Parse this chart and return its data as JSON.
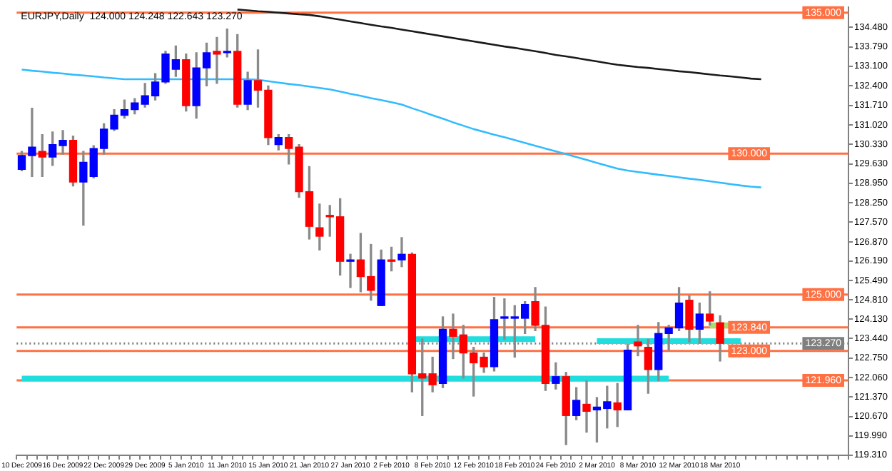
{
  "chart_data": {
    "type": "candlestick",
    "title": "EURJPY,Daily  124.000 124.248 122.643 123.270",
    "categories": [
      "10 Dec 2009",
      null,
      null,
      null,
      "16 Dec 2009",
      null,
      null,
      null,
      "22 Dec 2009",
      null,
      null,
      null,
      "29 Dec 2009",
      null,
      null,
      null,
      "5 Jan 2010",
      null,
      null,
      null,
      "11 Jan 2010",
      null,
      null,
      null,
      "15 Jan 2010",
      null,
      null,
      null,
      "21 Jan 2010",
      null,
      null,
      null,
      "27 Jan 2010",
      null,
      null,
      null,
      "2 Feb 2010",
      null,
      null,
      null,
      "8 Feb 2010",
      null,
      null,
      null,
      "12 Feb 2010",
      null,
      null,
      null,
      "18 Feb 2010",
      null,
      null,
      null,
      "24 Feb 2010",
      null,
      null,
      null,
      "2 Mar 2010",
      null,
      null,
      null,
      "8 Mar 2010",
      null,
      null,
      null,
      "12 Mar 2010",
      null,
      null,
      null,
      "18 Mar 2010",
      null,
      null,
      null,
      null,
      null,
      null,
      null,
      null,
      null,
      null,
      null,
      null
    ],
    "ohlc": [
      [
        129.44,
        130.08,
        129.39,
        129.93
      ],
      [
        129.93,
        131.61,
        129.19,
        130.23
      ],
      [
        130.08,
        130.67,
        129.19,
        129.88
      ],
      [
        129.88,
        130.77,
        129.58,
        130.32
      ],
      [
        130.28,
        130.82,
        129.98,
        130.47
      ],
      [
        130.47,
        130.62,
        128.85,
        128.99
      ],
      [
        128.99,
        130.08,
        127.46,
        129.69
      ],
      [
        129.19,
        130.28,
        129.14,
        130.18
      ],
      [
        130.18,
        131.06,
        129.98,
        130.87
      ],
      [
        130.87,
        131.56,
        130.82,
        131.36
      ],
      [
        131.36,
        131.9,
        131.26,
        131.56
      ],
      [
        131.56,
        131.95,
        131.41,
        131.8
      ],
      [
        131.75,
        132.49,
        131.65,
        132.05
      ],
      [
        132.05,
        132.84,
        131.9,
        132.54
      ],
      [
        132.54,
        133.63,
        132.49,
        133.53
      ],
      [
        132.99,
        133.82,
        132.74,
        133.33
      ],
      [
        133.33,
        133.53,
        131.51,
        131.7
      ],
      [
        131.7,
        133.58,
        131.26,
        133.04
      ],
      [
        133.04,
        133.92,
        132.4,
        133.58
      ],
      [
        133.63,
        134.12,
        132.49,
        133.53
      ],
      [
        133.58,
        134.42,
        133.43,
        133.63
      ],
      [
        133.63,
        134.22,
        131.65,
        131.75
      ],
      [
        131.75,
        132.89,
        131.56,
        132.59
      ],
      [
        132.59,
        133.68,
        131.65,
        132.25
      ],
      [
        132.25,
        132.4,
        130.32,
        130.57
      ],
      [
        130.32,
        130.67,
        130.13,
        130.57
      ],
      [
        130.57,
        130.67,
        129.63,
        130.18
      ],
      [
        130.23,
        130.32,
        128.45,
        128.65
      ],
      [
        128.65,
        129.54,
        126.97,
        127.42
      ],
      [
        127.37,
        128.21,
        126.58,
        127.07
      ],
      [
        127.76,
        128.16,
        127.07,
        127.76
      ],
      [
        127.76,
        128.4,
        125.69,
        126.18
      ],
      [
        126.18,
        126.43,
        125.25,
        126.23
      ],
      [
        126.23,
        127.17,
        125.1,
        125.64
      ],
      [
        125.64,
        126.78,
        124.8,
        125.15
      ],
      [
        124.61,
        126.58,
        124.61,
        126.23
      ],
      [
        126.23,
        126.68,
        125.84,
        126.18
      ],
      [
        126.23,
        127.02,
        125.99,
        126.43
      ],
      [
        126.43,
        126.48,
        121.55,
        122.19
      ],
      [
        122.19,
        123.42,
        120.71,
        122.04
      ],
      [
        122.19,
        122.78,
        121.55,
        121.8
      ],
      [
        121.85,
        124.21,
        121.7,
        123.77
      ],
      [
        123.77,
        124.31,
        122.73,
        123.52
      ],
      [
        123.57,
        123.91,
        122.04,
        122.93
      ],
      [
        122.93,
        123.13,
        121.4,
        122.58
      ],
      [
        122.78,
        122.93,
        122.24,
        122.44
      ],
      [
        122.44,
        124.9,
        122.29,
        124.11
      ],
      [
        124.16,
        124.85,
        123.42,
        124.21
      ],
      [
        124.16,
        124.61,
        122.78,
        124.21
      ],
      [
        124.16,
        124.75,
        123.62,
        124.65
      ],
      [
        124.75,
        125.25,
        123.72,
        123.91
      ],
      [
        123.91,
        124.56,
        121.6,
        121.85
      ],
      [
        121.85,
        122.58,
        121.65,
        122.09
      ],
      [
        122.09,
        122.24,
        119.68,
        120.71
      ],
      [
        120.71,
        121.7,
        120.56,
        121.25
      ],
      [
        121.11,
        121.94,
        120.12,
        120.86
      ],
      [
        120.91,
        121.35,
        119.77,
        121.01
      ],
      [
        120.96,
        121.75,
        120.27,
        121.2
      ],
      [
        121.16,
        121.85,
        120.32,
        120.91
      ],
      [
        120.91,
        123.23,
        120.91,
        123.03
      ],
      [
        123.32,
        123.91,
        122.83,
        123.18
      ],
      [
        123.13,
        123.42,
        121.5,
        122.34
      ],
      [
        122.34,
        124.01,
        121.94,
        123.62
      ],
      [
        123.62,
        123.91,
        123.03,
        123.82
      ],
      [
        123.82,
        125.25,
        123.72,
        124.7
      ],
      [
        124.8,
        124.95,
        123.32,
        123.77
      ],
      [
        123.77,
        124.7,
        123.27,
        124.31
      ],
      [
        124.31,
        125.1,
        123.91,
        124.06
      ],
      [
        124.0,
        124.248,
        122.643,
        123.27
      ],
      null,
      null,
      null,
      null,
      null,
      null,
      null,
      null,
      null,
      null,
      null,
      null
    ],
    "colors": [
      "#0000ff",
      "#0000ff",
      "#ff0000",
      "#0000ff",
      "#0000ff",
      "#ff0000",
      "#0000ff",
      "#0000ff",
      "#0000ff",
      "#0000ff",
      "#0000ff",
      "#0000ff",
      "#0000ff",
      "#0000ff",
      "#0000ff",
      "#0000ff",
      "#ff0000",
      "#0000ff",
      "#0000ff",
      "#ff0000",
      "#0000ff",
      "#ff0000",
      "#0000ff",
      "#ff0000",
      "#ff0000",
      "#0000ff",
      "#ff0000",
      "#ff0000",
      "#ff0000",
      "#ff0000",
      "#ff0000",
      "#ff0000",
      "#0000ff",
      "#ff0000",
      "#ff0000",
      "#0000ff",
      "#ff0000",
      "#0000ff",
      "#ff0000",
      "#ff0000",
      "#ff0000",
      "#0000ff",
      "#ff0000",
      "#ff0000",
      "#ff0000",
      "#ff0000",
      "#0000ff",
      "#0000ff",
      "#0000ff",
      "#0000ff",
      "#ff0000",
      "#ff0000",
      "#0000ff",
      "#ff0000",
      "#0000ff",
      "#ff0000",
      "#0000ff",
      "#0000ff",
      "#ff0000",
      "#0000ff",
      "#ff0000",
      "#ff0000",
      "#0000ff",
      "#0000ff",
      "#0000ff",
      "#ff0000",
      "#0000ff",
      "#ff0000",
      "#ff0000",
      null,
      null,
      null,
      null,
      null,
      null,
      null,
      null,
      null,
      null,
      null,
      null
    ],
    "series": [
      {
        "type": "line",
        "color": "#1a1a1a",
        "values": [
          null,
          null,
          null,
          null,
          null,
          null,
          null,
          null,
          null,
          null,
          null,
          null,
          null,
          null,
          null,
          null,
          null,
          null,
          null,
          null,
          null,
          135.11,
          135.08,
          135.05,
          135.03,
          135.0,
          134.97,
          134.94,
          134.92,
          134.87,
          134.81,
          134.75,
          134.69,
          134.63,
          134.57,
          134.51,
          134.46,
          134.4,
          134.34,
          134.28,
          134.22,
          134.16,
          134.1,
          134.04,
          133.98,
          133.92,
          133.86,
          133.8,
          133.75,
          133.69,
          133.63,
          133.57,
          133.5,
          133.45,
          133.39,
          133.33,
          133.27,
          133.21,
          133.15,
          133.11,
          133.07,
          133.04,
          133.0,
          132.96,
          132.92,
          132.89,
          132.85,
          132.81,
          132.77,
          132.74,
          132.7,
          132.66,
          132.64,
          null,
          null,
          null,
          null,
          null,
          null,
          null,
          null
        ]
      },
      {
        "type": "line",
        "color": "#33bbff",
        "values": [
          132.98,
          132.94,
          132.91,
          132.87,
          132.84,
          132.8,
          132.77,
          132.74,
          132.7,
          132.67,
          132.64,
          132.64,
          132.64,
          132.64,
          132.64,
          132.64,
          132.64,
          132.64,
          132.64,
          132.64,
          132.64,
          132.64,
          132.64,
          132.62,
          132.57,
          132.52,
          132.47,
          132.43,
          132.38,
          132.33,
          132.28,
          132.2,
          132.12,
          132.05,
          131.97,
          131.9,
          131.82,
          131.74,
          131.61,
          131.49,
          131.36,
          131.24,
          131.11,
          130.99,
          130.87,
          130.77,
          130.67,
          130.58,
          130.48,
          130.38,
          130.28,
          130.18,
          130.08,
          129.98,
          129.88,
          129.78,
          129.67,
          129.57,
          129.47,
          129.4,
          129.35,
          129.3,
          129.25,
          129.21,
          129.16,
          129.11,
          129.07,
          129.02,
          128.97,
          128.92,
          128.87,
          128.83,
          128.8,
          null,
          null,
          null,
          null,
          null,
          null,
          null,
          null
        ]
      },
      {
        "type": "line",
        "color": "#22dddd",
        "values": [
          122.02,
          122.02,
          122.02,
          122.02,
          122.02,
          122.02,
          122.02,
          122.02,
          122.02,
          122.02,
          122.02,
          122.02,
          122.02,
          122.02,
          122.02,
          122.02,
          122.02,
          122.02,
          122.02,
          122.02,
          122.02,
          122.02,
          122.02,
          122.02,
          122.02,
          122.02,
          122.02,
          122.02,
          122.02,
          122.02,
          122.02,
          122.02,
          122.02,
          122.02,
          122.02,
          122.02,
          122.02,
          122.02,
          122.02,
          122.02,
          122.02,
          122.02,
          122.02,
          122.02,
          122.02,
          122.02,
          122.02,
          122.02,
          122.02,
          122.02,
          122.02,
          122.02,
          122.02,
          122.02,
          122.02,
          122.02,
          122.02,
          122.02,
          122.02,
          122.02,
          122.02,
          122.02,
          122.02,
          122.02,
          null,
          null,
          null,
          null,
          null,
          null,
          null,
          null,
          null,
          null,
          null,
          null,
          null,
          null,
          null,
          null,
          null
        ]
      },
      {
        "type": "line",
        "color": "#22dddd",
        "values": [
          null,
          null,
          null,
          null,
          null,
          null,
          null,
          null,
          null,
          null,
          null,
          null,
          null,
          null,
          null,
          null,
          null,
          null,
          null,
          null,
          null,
          null,
          null,
          null,
          null,
          null,
          null,
          null,
          null,
          null,
          null,
          null,
          null,
          null,
          null,
          null,
          null,
          null,
          123.42,
          123.42,
          123.42,
          123.42,
          123.42,
          123.42,
          123.42,
          123.42,
          123.42,
          123.42,
          123.42,
          123.42,
          123.42,
          null,
          null,
          null,
          null,
          null,
          null,
          null,
          null,
          null,
          null,
          null,
          null,
          null,
          null,
          null,
          null,
          null,
          null,
          null,
          null,
          null,
          null,
          null,
          null,
          null,
          null,
          null,
          null,
          null,
          null
        ]
      },
      {
        "type": "line",
        "color": "#22dddd",
        "values": [
          null,
          null,
          null,
          null,
          null,
          null,
          null,
          null,
          null,
          null,
          null,
          null,
          null,
          null,
          null,
          null,
          null,
          null,
          null,
          null,
          null,
          null,
          null,
          null,
          null,
          null,
          null,
          null,
          null,
          null,
          null,
          null,
          null,
          null,
          null,
          null,
          null,
          null,
          null,
          null,
          null,
          null,
          null,
          null,
          null,
          null,
          null,
          null,
          null,
          null,
          null,
          null,
          null,
          null,
          null,
          null,
          123.35,
          123.35,
          123.35,
          123.35,
          123.35,
          123.35,
          123.35,
          123.35,
          123.35,
          123.35,
          123.35,
          123.35,
          123.35,
          123.35,
          123.35,
          null,
          null,
          null,
          null,
          null,
          null,
          null,
          null,
          null,
          null
        ]
      },
      {
        "type": "line",
        "color": "#a8e070",
        "values": [
          null,
          null,
          null,
          null,
          null,
          null,
          null,
          null,
          null,
          null,
          null,
          null,
          null,
          null,
          null,
          null,
          null,
          null,
          null,
          null,
          null,
          null,
          null,
          null,
          null,
          null,
          null,
          null,
          null,
          null,
          null,
          null,
          null,
          null,
          null,
          null,
          null,
          null,
          null,
          null,
          null,
          null,
          null,
          null,
          null,
          null,
          null,
          null,
          null,
          null,
          null,
          null,
          null,
          null,
          null,
          null,
          null,
          null,
          null,
          null,
          null,
          null,
          null,
          null,
          null,
          null,
          null,
          123.91,
          123.91,
          123.91,
          null,
          null,
          null,
          null,
          null,
          null,
          null,
          null,
          null,
          null,
          null
        ]
      }
    ],
    "ylim": [
      119.3,
      135.2
    ],
    "yticks": [
      {
        "value": 134.48,
        "label": "134.480"
      },
      {
        "value": 133.79,
        "label": "133.790"
      },
      {
        "value": 133.1,
        "label": "133.100"
      },
      {
        "value": 132.4,
        "label": "132.400"
      },
      {
        "value": 131.71,
        "label": "131.710"
      },
      {
        "value": 131.02,
        "label": "131.020"
      },
      {
        "value": 130.33,
        "label": "130.330"
      },
      {
        "value": 129.63,
        "label": "129.630"
      },
      {
        "value": 128.95,
        "label": "128.950"
      },
      {
        "value": 128.25,
        "label": "128.250"
      },
      {
        "value": 127.57,
        "label": "127.570"
      },
      {
        "value": 126.87,
        "label": "126.870"
      },
      {
        "value": 126.19,
        "label": "126.190"
      },
      {
        "value": 125.49,
        "label": "125.490"
      },
      {
        "value": 124.81,
        "label": "124.810"
      },
      {
        "value": 124.13,
        "label": "124.130"
      },
      {
        "value": 123.44,
        "label": "123.440"
      },
      {
        "value": 122.75,
        "label": "122.750"
      },
      {
        "value": 122.06,
        "label": "122.060"
      },
      {
        "value": 121.37,
        "label": "121.370"
      },
      {
        "value": 120.67,
        "label": "120.670"
      },
      {
        "value": 119.99,
        "label": "119.990"
      },
      {
        "value": 119.31,
        "label": "119.310"
      }
    ],
    "ref_lines": [
      {
        "axis": "y",
        "value": 135.0,
        "label": "135.000",
        "color": "#ff7043"
      },
      {
        "axis": "y",
        "value": 130.0,
        "label": "130.000",
        "color": "#ff7043"
      },
      {
        "axis": "y",
        "value": 125.0,
        "label": "125.000",
        "color": "#ff7043"
      },
      {
        "axis": "y",
        "value": 123.84,
        "label": "123.840",
        "color": "#ff7043"
      },
      {
        "axis": "y",
        "value": 123.27,
        "label": "123.270",
        "color": "#808080",
        "line_style": "dotted"
      },
      {
        "axis": "y",
        "value": 123.0,
        "label": "123.000",
        "color": "#ff7043"
      },
      {
        "axis": "y",
        "value": 121.96,
        "label": "121.960",
        "color": "#ff7043"
      }
    ],
    "grid": false,
    "legend": false
  }
}
